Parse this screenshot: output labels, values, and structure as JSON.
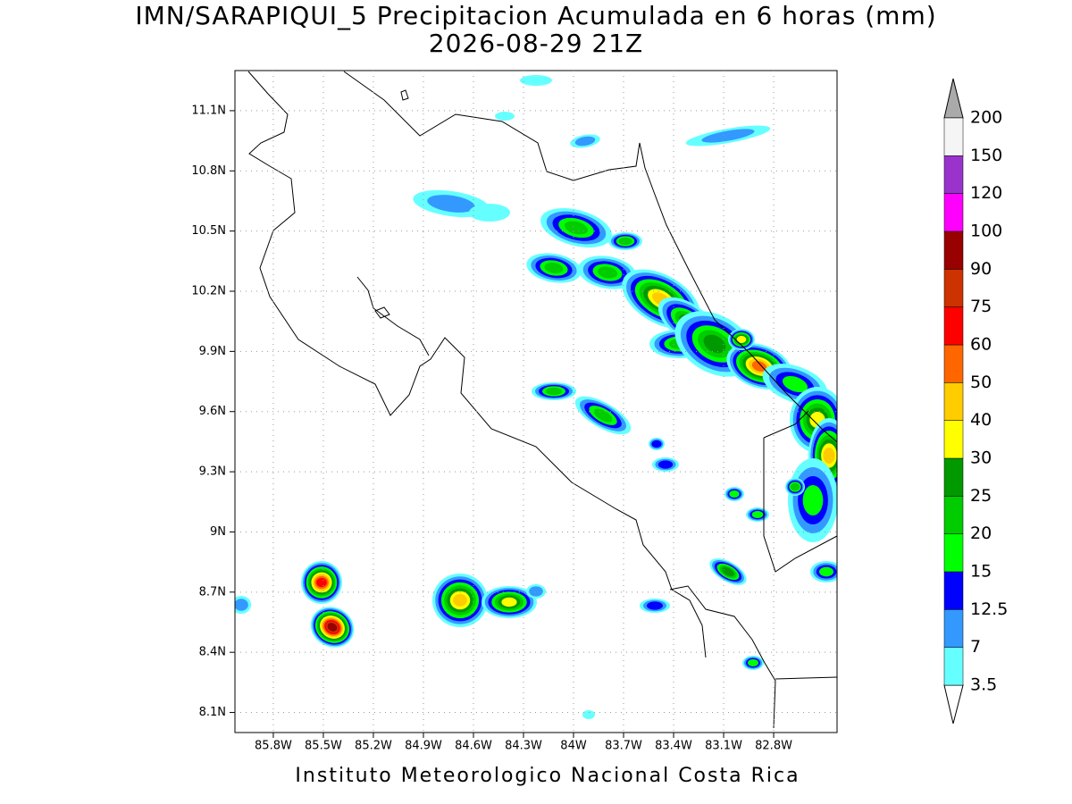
{
  "chart_data": {
    "type": "map",
    "title": "IMN/SARAPIQUI_5 Precipitacion Acumulada en 6 horas (mm)",
    "subtitle": "2026-08-29 21Z",
    "footer": "Instituto Meteorologico Nacional Costa Rica",
    "xlim": [
      -86.03,
      -82.42
    ],
    "ylim": [
      8.0,
      11.3
    ],
    "xticks": [
      {
        "value": -85.8,
        "label": "85.8W"
      },
      {
        "value": -85.5,
        "label": "85.5W"
      },
      {
        "value": -85.2,
        "label": "85.2W"
      },
      {
        "value": -84.9,
        "label": "84.9W"
      },
      {
        "value": -84.6,
        "label": "84.6W"
      },
      {
        "value": -84.3,
        "label": "84.3W"
      },
      {
        "value": -84.0,
        "label": "84W"
      },
      {
        "value": -83.7,
        "label": "83.7W"
      },
      {
        "value": -83.4,
        "label": "83.4W"
      },
      {
        "value": -83.1,
        "label": "83.1W"
      },
      {
        "value": -82.8,
        "label": "82.8W"
      }
    ],
    "yticks": [
      {
        "value": 8.1,
        "label": "8.1N"
      },
      {
        "value": 8.4,
        "label": "8.4N"
      },
      {
        "value": 8.7,
        "label": "8.7N"
      },
      {
        "value": 9.0,
        "label": "9N"
      },
      {
        "value": 9.3,
        "label": "9.3N"
      },
      {
        "value": 9.6,
        "label": "9.6N"
      },
      {
        "value": 9.9,
        "label": "9.9N"
      },
      {
        "value": 10.2,
        "label": "10.2N"
      },
      {
        "value": 10.5,
        "label": "10.5N"
      },
      {
        "value": 10.8,
        "label": "10.8N"
      },
      {
        "value": 11.1,
        "label": "11.1N"
      }
    ],
    "grid": true,
    "colorbar": {
      "levels": [
        3.5,
        7,
        12.5,
        15,
        20,
        25,
        30,
        40,
        50,
        60,
        75,
        90,
        100,
        120,
        150,
        200
      ],
      "colors": [
        "#66ffff",
        "#3399ff",
        "#0000ff",
        "#00ff00",
        "#00cc00",
        "#009900",
        "#ffff00",
        "#ffcc00",
        "#ff6600",
        "#ff0000",
        "#cc3300",
        "#990000",
        "#ff00ff",
        "#9933cc",
        "#f5f5f5"
      ]
    }
  }
}
